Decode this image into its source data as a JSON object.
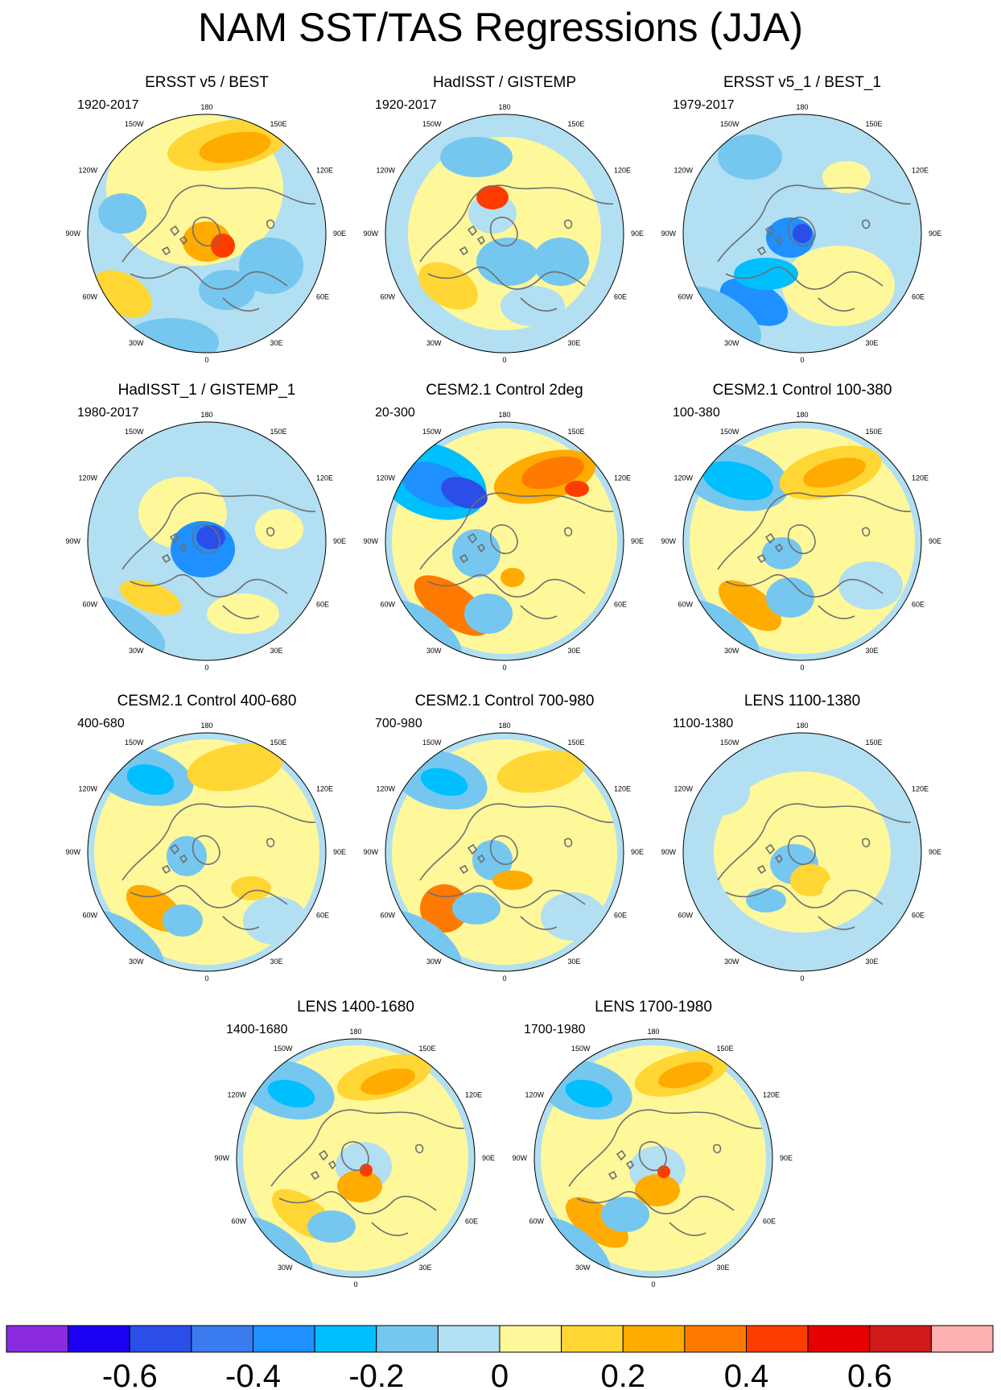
{
  "title": "NAM SST/TAS Regressions (JJA)",
  "longitude_labels": [
    "180",
    "150E",
    "120E",
    "90E",
    "60E",
    "30E",
    "0",
    "30W",
    "60W",
    "90W",
    "120W",
    "150W"
  ],
  "panels": [
    {
      "title": "ERSST v5 / BEST",
      "period": "1920-2017"
    },
    {
      "title": "HadISST / GISTEMP",
      "period": "1920-2017"
    },
    {
      "title": "ERSST v5_1 / BEST_1",
      "period": "1979-2017"
    },
    {
      "title": "HadISST_1 / GISTEMP_1",
      "period": "1980-2017"
    },
    {
      "title": "CESM2.1 Control 2deg",
      "period": "20-300"
    },
    {
      "title": "CESM2.1 Control 100-380",
      "period": "100-380"
    },
    {
      "title": "CESM2.1 Control 400-680",
      "period": "400-680"
    },
    {
      "title": "CESM2.1 Control 700-980",
      "period": "700-980"
    },
    {
      "title": "LENS 1100-1380",
      "period": "1100-1380"
    },
    {
      "title": "LENS 1400-1680",
      "period": "1400-1680"
    },
    {
      "title": "LENS 1700-1980",
      "period": "1700-1980"
    }
  ],
  "colorbar": {
    "colors": [
      "#8a2be2",
      "#1b00f2",
      "#2b4ee8",
      "#3a7bf0",
      "#1e90ff",
      "#00bfff",
      "#75c7f0",
      "#b2dff2",
      "#fff89a",
      "#ffd633",
      "#ffab00",
      "#ff7a00",
      "#ff3c00",
      "#e60000",
      "#d11a1a",
      "#ffb0b0"
    ],
    "tick_labels": [
      "-0.6",
      "-0.4",
      "-0.2",
      "0",
      "0.2",
      "0.4",
      "0.6"
    ]
  },
  "colors": {
    "neutral_pos": "#fff89a",
    "neutral_neg": "#b2dff2",
    "pos_mid": "#ffd633",
    "pos_strong": "#ffab00",
    "pos_stronger": "#ff7a00",
    "pos_max": "#ff3c00",
    "neg_mid": "#75c7f0",
    "neg_strong": "#00bfff",
    "neg_stronger": "#1e90ff",
    "neg_max": "#2b4ee8",
    "coast": "#6f6f6f"
  }
}
